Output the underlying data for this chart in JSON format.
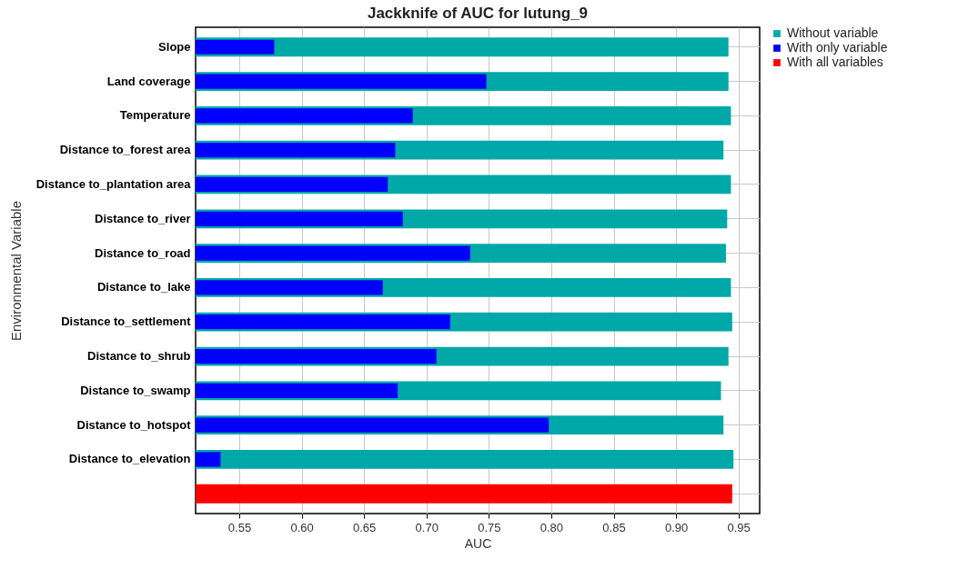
{
  "chart_data": {
    "type": "bar",
    "orientation": "horizontal",
    "title": "Jackknife of AUC for lutung_9",
    "xlabel": "AUC",
    "ylabel": "Environmental Variable",
    "categories": [
      "Slope",
      "Land coverage",
      "Temperature",
      "Distance to_forest area",
      "Distance to_plantation area",
      "Distance to_river",
      "Distance to_road",
      "Distance to_lake",
      "Distance to_settlement",
      "Distance to_shrub",
      "Distance to_swamp",
      "Distance to_hotspot",
      "Distance to_elevation",
      null
    ],
    "series": [
      {
        "name": "Without variable",
        "color": "#00a8a8",
        "values": [
          0.942,
          0.942,
          0.944,
          0.938,
          0.944,
          0.941,
          0.94,
          0.944,
          0.945,
          0.942,
          0.936,
          0.938,
          0.946,
          null
        ]
      },
      {
        "name": "With only variable",
        "color": "#0000ff",
        "values": [
          0.578,
          0.748,
          0.689,
          0.675,
          0.669,
          0.681,
          0.735,
          0.665,
          0.719,
          0.708,
          0.677,
          0.798,
          0.535,
          null
        ]
      },
      {
        "name": "With all variables",
        "color": "#ff0000",
        "values": [
          null,
          null,
          null,
          null,
          null,
          null,
          null,
          null,
          null,
          null,
          null,
          null,
          null,
          0.945
        ]
      }
    ],
    "xlim": [
      0.515,
      0.967
    ],
    "xticks": [
      0.55,
      {
        "value": 0.6,
        "label": "0.60"
      },
      0.65,
      {
        "value": 0.7,
        "label": "0.70"
      },
      0.75,
      {
        "value": 0.8,
        "label": "0.80"
      },
      0.85,
      {
        "value": 0.9,
        "label": "0.90"
      },
      0.95
    ],
    "grid": true,
    "legend": "top right"
  }
}
